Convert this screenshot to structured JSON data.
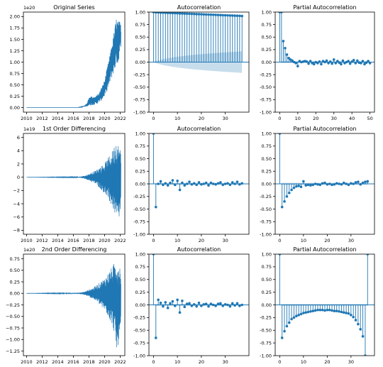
{
  "figure": {
    "layout": "3x3 subplot grid"
  },
  "chart_data": [
    {
      "type": "line",
      "title": "Original Series",
      "offset_label": "1e20",
      "x_ticks": [
        "2010",
        "2012",
        "2014",
        "2016",
        "2018",
        "2020",
        "2022"
      ],
      "y_ticks": [
        0.0,
        0.25,
        0.5,
        0.75,
        1.0,
        1.25,
        1.5,
        1.75,
        2.0
      ],
      "y_tick_labels": [
        "0.00",
        "0.25",
        "0.50",
        "0.75",
        "1.00",
        "1.25",
        "1.50",
        "1.75",
        "2.00"
      ],
      "xlim": [
        2009.6,
        2022.6
      ],
      "ylim": [
        -0.1,
        2.1
      ],
      "series": [
        {
          "color": "#1f77b4",
          "envelope": [
            [
              2010,
              0.0,
              0.0
            ],
            [
              2016.5,
              0.0,
              0.0
            ],
            [
              2017.0,
              0.01,
              0.02
            ],
            [
              2017.5,
              0.02,
              0.05
            ],
            [
              2017.8,
              0.03,
              0.12
            ],
            [
              2018.0,
              0.04,
              0.22
            ],
            [
              2018.3,
              0.05,
              0.25
            ],
            [
              2018.6,
              0.06,
              0.24
            ],
            [
              2019.0,
              0.08,
              0.28
            ],
            [
              2019.3,
              0.12,
              0.32
            ],
            [
              2019.6,
              0.15,
              0.45
            ],
            [
              2020.0,
              0.25,
              0.6
            ],
            [
              2020.3,
              0.35,
              0.85
            ],
            [
              2020.6,
              0.5,
              1.1
            ],
            [
              2021.0,
              0.7,
              1.45
            ],
            [
              2021.3,
              0.8,
              1.75
            ],
            [
              2021.5,
              1.0,
              1.97
            ],
            [
              2021.7,
              0.9,
              1.9
            ],
            [
              2022.0,
              1.25,
              1.9
            ],
            [
              2022.1,
              1.35,
              1.8
            ]
          ]
        }
      ]
    },
    {
      "type": "stem",
      "title": "Autocorrelation",
      "x_ticks": [
        0,
        10,
        20,
        30
      ],
      "y_ticks": [
        -1.0,
        -0.75,
        -0.5,
        -0.25,
        0.0,
        0.25,
        0.5,
        0.75,
        1.0
      ],
      "y_tick_labels": [
        "-1.00",
        "-0.75",
        "-0.50",
        "-0.25",
        "0.00",
        "0.25",
        "0.50",
        "0.75",
        "1.00"
      ],
      "xlim": [
        -1.9,
        39.9
      ],
      "ylim": [
        -1.0,
        1.0
      ],
      "confidence_band": [
        0.0,
        0.02,
        0.035,
        0.047,
        0.058,
        0.068,
        0.077,
        0.085,
        0.093,
        0.1,
        0.107,
        0.113,
        0.119,
        0.125,
        0.13,
        0.135,
        0.14,
        0.145,
        0.15,
        0.154,
        0.158,
        0.162,
        0.166,
        0.17,
        0.174,
        0.178,
        0.181,
        0.185,
        0.188,
        0.191,
        0.194,
        0.197,
        0.2,
        0.203,
        0.206,
        0.209,
        0.212,
        0.215
      ],
      "values": [
        1.0,
        0.995,
        0.993,
        0.99,
        0.988,
        0.986,
        0.984,
        0.982,
        0.98,
        0.978,
        0.976,
        0.974,
        0.972,
        0.97,
        0.968,
        0.966,
        0.964,
        0.962,
        0.96,
        0.958,
        0.956,
        0.954,
        0.952,
        0.95,
        0.948,
        0.946,
        0.944,
        0.942,
        0.94,
        0.938,
        0.936,
        0.934,
        0.932,
        0.93,
        0.928,
        0.926,
        0.924,
        0.922
      ]
    },
    {
      "type": "stem",
      "title": "Partial Autocorrelation",
      "x_ticks": [
        0,
        10,
        20,
        30,
        40,
        50
      ],
      "y_ticks": [
        -1.0,
        -0.75,
        -0.5,
        -0.25,
        0.0,
        0.25,
        0.5,
        0.75,
        1.0
      ],
      "y_tick_labels": [
        "-1.00",
        "-0.75",
        "-0.50",
        "-0.25",
        "0.00",
        "0.25",
        "0.50",
        "0.75",
        "1.00"
      ],
      "xlim": [
        -2.5,
        52.5
      ],
      "ylim": [
        -1.0,
        1.0
      ],
      "confidence_band": [
        0.0,
        0.02,
        0.02,
        0.02,
        0.02,
        0.02,
        0.02,
        0.02,
        0.02,
        0.02,
        0.02,
        0.02,
        0.02,
        0.02,
        0.02,
        0.02,
        0.02,
        0.02,
        0.02,
        0.02,
        0.02,
        0.02,
        0.02,
        0.02,
        0.02,
        0.02,
        0.02,
        0.02,
        0.02,
        0.02,
        0.02,
        0.02,
        0.02,
        0.02,
        0.02,
        0.02,
        0.02,
        0.02,
        0.02,
        0.02,
        0.02,
        0.02,
        0.02,
        0.02,
        0.02,
        0.02,
        0.02,
        0.02,
        0.02,
        0.02,
        0.02
      ],
      "values": [
        1.0,
        1.0,
        0.42,
        0.28,
        0.15,
        0.08,
        0.05,
        0.03,
        0.0,
        -0.02,
        -0.08,
        0.02,
        0.0,
        0.01,
        0.02,
        0.01,
        -0.03,
        0.02,
        -0.02,
        -0.04,
        0.0,
        -0.02,
        0.01,
        -0.04,
        0.02,
        0.0,
        0.03,
        -0.02,
        0.01,
        -0.03,
        0.05,
        -0.02,
        0.02,
        -0.01,
        -0.04,
        0.03,
        -0.02,
        0.0,
        0.02,
        -0.03,
        0.01,
        0.04,
        -0.02,
        0.03,
        -0.01,
        -0.02,
        0.02,
        -0.04,
        -0.01,
        0.02,
        -0.02
      ]
    },
    {
      "type": "line",
      "title": "1st Order Differencing",
      "offset_label": "1e19",
      "x_ticks": [
        "2010",
        "2012",
        "2014",
        "2016",
        "2018",
        "2020",
        "2022"
      ],
      "y_ticks": [
        -8,
        -6,
        -4,
        -2,
        0,
        2,
        4,
        6
      ],
      "y_tick_labels": [
        "−8",
        "−6",
        "−4",
        "−2",
        "0",
        "2",
        "4",
        "6"
      ],
      "xlim": [
        2009.6,
        2022.6
      ],
      "ylim": [
        -8.6,
        6.6
      ],
      "series": [
        {
          "color": "#1f77b4",
          "envelope": [
            [
              2010,
              0.0,
              0.0
            ],
            [
              2016.5,
              -0.05,
              0.05
            ],
            [
              2017.0,
              -0.12,
              0.12
            ],
            [
              2017.5,
              -0.25,
              0.25
            ],
            [
              2018.0,
              -0.5,
              0.5
            ],
            [
              2018.5,
              -0.8,
              0.8
            ],
            [
              2019.0,
              -1.2,
              1.2
            ],
            [
              2019.5,
              -1.8,
              1.6
            ],
            [
              2020.0,
              -2.5,
              2.2
            ],
            [
              2020.3,
              -3.0,
              2.6
            ],
            [
              2020.6,
              -3.8,
              3.2
            ],
            [
              2021.0,
              -4.5,
              4.0
            ],
            [
              2021.3,
              -5.5,
              5.0
            ],
            [
              2021.5,
              -7.2,
              6.0
            ],
            [
              2021.7,
              -6.8,
              5.2
            ],
            [
              2022.0,
              -6.0,
              4.5
            ],
            [
              2022.1,
              -5.0,
              4.0
            ]
          ]
        }
      ]
    },
    {
      "type": "stem",
      "title": "Autocorrelation",
      "x_ticks": [
        0,
        10,
        20,
        30
      ],
      "y_ticks": [
        -1.0,
        -0.75,
        -0.5,
        -0.25,
        0.0,
        0.25,
        0.5,
        0.75,
        1.0
      ],
      "y_tick_labels": [
        "-1.00",
        "-0.75",
        "-0.50",
        "-0.25",
        "0.00",
        "0.25",
        "0.50",
        "0.75",
        "1.00"
      ],
      "xlim": [
        -1.9,
        39.9
      ],
      "ylim": [
        -1.0,
        1.0
      ],
      "confidence_band": [
        0.0,
        0.02,
        0.02,
        0.02,
        0.02,
        0.02,
        0.02,
        0.02,
        0.02,
        0.02,
        0.02,
        0.02,
        0.02,
        0.02,
        0.02,
        0.02,
        0.02,
        0.02,
        0.02,
        0.02,
        0.02,
        0.02,
        0.02,
        0.02,
        0.02,
        0.02,
        0.02,
        0.02,
        0.02,
        0.02,
        0.02,
        0.02,
        0.02,
        0.02,
        0.02,
        0.02,
        0.02,
        0.02
      ],
      "values": [
        1.0,
        -0.46,
        0.0,
        0.05,
        -0.02,
        0.01,
        -0.03,
        0.02,
        0.07,
        -0.02,
        0.06,
        -0.12,
        0.02,
        -0.03,
        0.0,
        0.04,
        -0.01,
        0.01,
        -0.02,
        0.03,
        -0.01,
        0.0,
        0.02,
        -0.03,
        0.02,
        0.0,
        -0.01,
        0.01,
        0.03,
        -0.02,
        0.0,
        0.01,
        -0.02,
        0.03,
        0.0,
        0.04,
        -0.01,
        0.01
      ]
    },
    {
      "type": "stem",
      "title": "Partial Autocorrelation",
      "x_ticks": [
        0,
        10,
        20,
        30
      ],
      "y_ticks": [
        -1.0,
        -0.75,
        -0.5,
        -0.25,
        0.0,
        0.25,
        0.5,
        0.75,
        1.0
      ],
      "y_tick_labels": [
        "-1.00",
        "-0.75",
        "-0.50",
        "-0.25",
        "0.00",
        "0.25",
        "0.50",
        "0.75",
        "1.00"
      ],
      "xlim": [
        -1.9,
        39.9
      ],
      "ylim": [
        -1.0,
        1.0
      ],
      "confidence_band": [
        0.0,
        0.02,
        0.02,
        0.02,
        0.02,
        0.02,
        0.02,
        0.02,
        0.02,
        0.02,
        0.02,
        0.02,
        0.02,
        0.02,
        0.02,
        0.02,
        0.02,
        0.02,
        0.02,
        0.02,
        0.02,
        0.02,
        0.02,
        0.02,
        0.02,
        0.02,
        0.02,
        0.02,
        0.02,
        0.02,
        0.02,
        0.02,
        0.02,
        0.02,
        0.02,
        0.02,
        0.02,
        0.02
      ],
      "values": [
        1.0,
        -0.46,
        -0.35,
        -0.25,
        -0.18,
        -0.12,
        -0.08,
        -0.05,
        -0.04,
        -0.06,
        0.05,
        -0.03,
        -0.02,
        -0.03,
        -0.02,
        0.0,
        -0.01,
        -0.02,
        0.01,
        0.02,
        -0.01,
        0.0,
        -0.02,
        -0.01,
        0.01,
        0.0,
        -0.01,
        0.02,
        0.0,
        -0.02,
        0.01,
        0.0,
        0.03,
        0.04,
        -0.01,
        0.02,
        0.04,
        0.05
      ]
    },
    {
      "type": "line",
      "title": "2nd Order Differencing",
      "offset_label": "1e20",
      "x_ticks": [
        "2010",
        "2012",
        "2014",
        "2016",
        "2018",
        "2020",
        "2022"
      ],
      "y_ticks": [
        -1.25,
        -1.0,
        -0.75,
        -0.5,
        -0.25,
        0.0,
        0.25,
        0.5,
        0.75
      ],
      "y_tick_labels": [
        "−1.25",
        "−1.00",
        "−0.75",
        "−0.50",
        "−0.25",
        "0.00",
        "0.25",
        "0.50",
        "0.75"
      ],
      "xlim": [
        2009.6,
        2022.6
      ],
      "ylim": [
        -1.35,
        0.85
      ],
      "series": [
        {
          "color": "#1f77b4",
          "envelope": [
            [
              2010,
              0.0,
              0.0
            ],
            [
              2016.5,
              -0.01,
              0.01
            ],
            [
              2017.0,
              -0.02,
              0.02
            ],
            [
              2017.5,
              -0.04,
              0.04
            ],
            [
              2018.0,
              -0.08,
              0.08
            ],
            [
              2018.5,
              -0.12,
              0.12
            ],
            [
              2019.0,
              -0.18,
              0.18
            ],
            [
              2019.5,
              -0.28,
              0.25
            ],
            [
              2020.0,
              -0.38,
              0.33
            ],
            [
              2020.3,
              -0.45,
              0.4
            ],
            [
              2020.6,
              -0.55,
              0.48
            ],
            [
              2021.0,
              -0.7,
              0.58
            ],
            [
              2021.3,
              -0.9,
              0.68
            ],
            [
              2021.5,
              -1.25,
              0.78
            ],
            [
              2021.7,
              -1.15,
              0.72
            ],
            [
              2022.0,
              -0.95,
              0.62
            ],
            [
              2022.1,
              -0.85,
              0.55
            ]
          ]
        }
      ]
    },
    {
      "type": "stem",
      "title": "Autocorrelation",
      "x_ticks": [
        0,
        10,
        20,
        30
      ],
      "y_ticks": [
        -1.0,
        -0.75,
        -0.5,
        -0.25,
        0.0,
        0.25,
        0.5,
        0.75,
        1.0
      ],
      "y_tick_labels": [
        "-1.00",
        "-0.75",
        "-0.50",
        "-0.25",
        "0.00",
        "0.25",
        "0.50",
        "0.75",
        "1.00"
      ],
      "xlim": [
        -1.9,
        39.9
      ],
      "ylim": [
        -1.0,
        1.0
      ],
      "confidence_band": [
        0.0,
        0.02,
        0.02,
        0.02,
        0.02,
        0.02,
        0.02,
        0.02,
        0.02,
        0.02,
        0.02,
        0.02,
        0.02,
        0.02,
        0.02,
        0.02,
        0.02,
        0.02,
        0.02,
        0.02,
        0.02,
        0.02,
        0.02,
        0.02,
        0.02,
        0.02,
        0.02,
        0.02,
        0.02,
        0.02,
        0.02,
        0.02,
        0.02,
        0.02,
        0.02,
        0.02,
        0.02,
        0.02
      ],
      "values": [
        1.0,
        -0.65,
        0.1,
        0.04,
        -0.03,
        0.05,
        -0.06,
        0.03,
        0.07,
        -0.02,
        0.1,
        -0.15,
        0.08,
        -0.04,
        0.02,
        0.03,
        -0.02,
        0.01,
        -0.03,
        0.04,
        -0.02,
        0.01,
        0.02,
        -0.03,
        0.02,
        0.0,
        -0.02,
        0.02,
        0.03,
        -0.02,
        0.01,
        0.0,
        -0.03,
        0.03,
        -0.01,
        0.03,
        -0.02,
        0.0
      ]
    },
    {
      "type": "stem",
      "title": "Partial Autocorrelation",
      "x_ticks": [
        0,
        10,
        20,
        30
      ],
      "y_ticks": [
        -1.0,
        -0.75,
        -0.5,
        -0.25,
        0.0,
        0.25,
        0.5,
        0.75,
        1.0
      ],
      "y_tick_labels": [
        "-1.00",
        "-0.75",
        "-0.50",
        "-0.25",
        "0.00",
        "0.25",
        "0.50",
        "0.75",
        "1.00"
      ],
      "xlim": [
        -1.9,
        39.9
      ],
      "ylim": [
        -1.0,
        1.0
      ],
      "confidence_band": [
        0.0,
        0.02,
        0.02,
        0.02,
        0.02,
        0.02,
        0.02,
        0.02,
        0.02,
        0.02,
        0.02,
        0.02,
        0.02,
        0.02,
        0.02,
        0.02,
        0.02,
        0.02,
        0.02,
        0.02,
        0.02,
        0.02,
        0.02,
        0.02,
        0.02,
        0.02,
        0.02,
        0.02,
        0.02,
        0.02,
        0.02,
        0.02,
        0.02,
        0.02,
        0.02,
        0.02,
        0.02,
        0.02
      ],
      "values": [
        1.0,
        -0.65,
        -0.52,
        -0.42,
        -0.35,
        -0.28,
        -0.25,
        -0.22,
        -0.2,
        -0.18,
        -0.16,
        -0.15,
        -0.14,
        -0.13,
        -0.12,
        -0.11,
        -0.1,
        -0.1,
        -0.1,
        -0.11,
        -0.1,
        -0.1,
        -0.11,
        -0.12,
        -0.12,
        -0.13,
        -0.14,
        -0.15,
        -0.16,
        -0.17,
        -0.2,
        -0.24,
        -0.3,
        -0.38,
        -0.48,
        -0.62,
        -1.0,
        1.0
      ]
    }
  ]
}
